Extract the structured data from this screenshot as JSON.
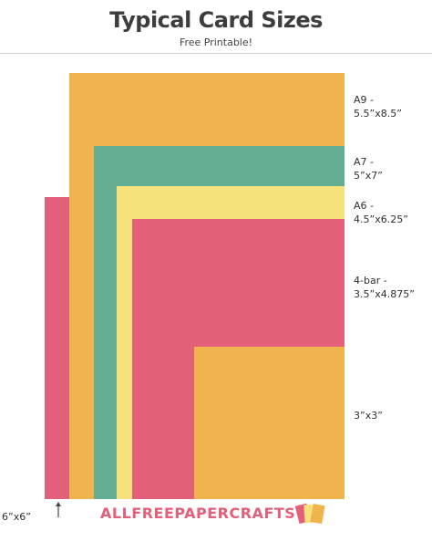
{
  "header": {
    "title": "Typical Card Sizes",
    "subtitle": "Free Printable!"
  },
  "cards": [
    {
      "id": "a9",
      "name_line1": "A9 -",
      "name_line2": "5.5”x8.5”",
      "color": "#F0B44F"
    },
    {
      "id": "a7",
      "name_line1": "A7 -",
      "name_line2": "5”x7”",
      "color": "#63AE92"
    },
    {
      "id": "a6",
      "name_line1": "A6 -",
      "name_line2": "4.5”x6.25”",
      "color": "#F6E27A"
    },
    {
      "id": "4bar",
      "name_line1": "4-bar -",
      "name_line2": "3.5”x4.875”",
      "color": "#E2607A"
    },
    {
      "id": "3x3",
      "name_line1": "3”x3”",
      "color": "#F0B44F"
    },
    {
      "id": "6x6",
      "name_line1": "6”x6”",
      "color": "#E2607A"
    }
  ],
  "logo": {
    "text": "ALLFREEPAPERCRAFTS",
    "color": "#E2607A",
    "icon": "paper-stack-icon"
  }
}
